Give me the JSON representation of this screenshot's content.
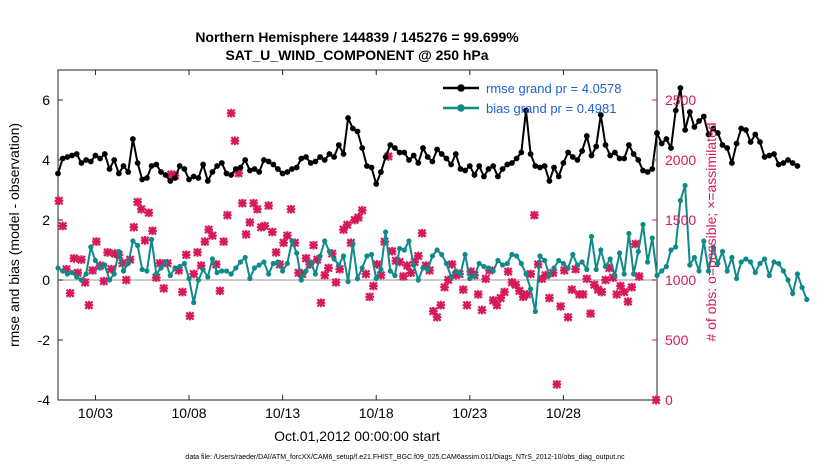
{
  "chart_data": {
    "type": "line",
    "title": "Northern Hemisphere 144839 / 145276 = 99.699%",
    "subtitle": "SAT_U_WIND_COMPONENT @ 250 hPa",
    "xlabel": "Oct.01,2012 00:00:00 start",
    "ylabel": "rmse and bias (model - observation)",
    "y2label": "# of obs: o=possible; ×=assimilated",
    "footnote": "data file: /Users/raeder/DAI/ATM_forcXX/CAM6_setup/f.e21.FHIST_BGC.f09_025.CAM6assim.011/Diags_NTrS_2012-10/obs_diag_output.nc",
    "x_tick_labels": [
      "10/03",
      "10/08",
      "10/13",
      "10/18",
      "10/23",
      "10/28"
    ],
    "x_tick_days": [
      3,
      8,
      13,
      18,
      23,
      28
    ],
    "xlim_days": [
      1.0,
      33.0
    ],
    "ylim": [
      -4,
      7
    ],
    "y_ticks": [
      -4,
      -2,
      0,
      2,
      4,
      6
    ],
    "y2lim": [
      0,
      2750
    ],
    "y2_ticks": [
      0,
      500,
      1000,
      1500,
      2000,
      2500
    ],
    "colors": {
      "rmse": "#000000",
      "bias": "#0f8a8a",
      "obs": "#d6195a",
      "zero_line": "#bbbbbb",
      "legend_text": "#1f5fd6"
    },
    "legend_placement": "top-right",
    "series": [
      {
        "name": "rmse grand pr = 4.0578",
        "key": "rmse",
        "x_start_day": 1.0,
        "dx_days": 0.25,
        "values": [
          3.55,
          4.05,
          4.1,
          4.15,
          4.2,
          3.9,
          4.0,
          3.95,
          4.15,
          4.05,
          4.2,
          3.7,
          4.0,
          3.55,
          3.8,
          3.6,
          4.7,
          3.9,
          3.35,
          3.4,
          3.8,
          3.85,
          3.6,
          3.5,
          3.3,
          3.4,
          3.8,
          3.7,
          3.35,
          3.45,
          3.4,
          3.85,
          3.3,
          3.6,
          3.8,
          3.9,
          3.55,
          3.5,
          3.7,
          3.75,
          4.0,
          3.65,
          3.7,
          3.6,
          4.0,
          3.95,
          3.85,
          3.7,
          3.55,
          3.6,
          3.7,
          3.75,
          4.05,
          4.1,
          3.9,
          3.95,
          4.1,
          4.0,
          4.2,
          4.1,
          4.5,
          4.2,
          5.4,
          5.05,
          4.95,
          4.4,
          3.8,
          3.75,
          3.2,
          3.6,
          4.1,
          4.5,
          4.4,
          4.25,
          4.25,
          4.0,
          4.15,
          3.9,
          4.4,
          4.1,
          3.95,
          4.35,
          4.2,
          4.05,
          3.85,
          4.2,
          3.7,
          3.65,
          3.8,
          3.5,
          3.8,
          3.45,
          3.7,
          3.8,
          3.45,
          3.7,
          3.85,
          3.9,
          4.05,
          4.25,
          5.65,
          4.2,
          3.8,
          3.75,
          3.8,
          3.3,
          3.75,
          3.45,
          3.9,
          4.25,
          4.1,
          4.0,
          4.3,
          4.8,
          4.15,
          4.45,
          5.5,
          4.5,
          4.15,
          4.25,
          4.05,
          4.05,
          4.5,
          4.2,
          4.0,
          3.65,
          3.6,
          3.7,
          4.9,
          4.55,
          4.7,
          4.4,
          5.65,
          6.4,
          5.0,
          5.6,
          5.1,
          5.3,
          5.45,
          4.85,
          5.05,
          4.9,
          4.5,
          4.4,
          3.9,
          4.55,
          5.05,
          5.0,
          4.6,
          4.85,
          4.6,
          4.1,
          4.15,
          4.2,
          3.85,
          3.9,
          4.0,
          3.9,
          3.8
        ]
      },
      {
        "name": "bias grand pr = 0.4981",
        "key": "bias",
        "x_start_day": 1.0,
        "dx_days": 0.25,
        "values": [
          0.4,
          0.3,
          0.2,
          0.25,
          0.1,
          0.0,
          0.2,
          1.1,
          0.65,
          0.4,
          0.5,
          0.0,
          0.2,
          0.95,
          0.3,
          0.55,
          1.3,
          1.15,
          0.35,
          0.3,
          1.35,
          0.2,
          0.4,
          0.6,
          0.15,
          0.4,
          0.45,
          0.55,
          0.05,
          -0.75,
          0.0,
          0.35,
          0.1,
          0.7,
          0.25,
          0.3,
          0.3,
          0.2,
          0.4,
          0.6,
          0.75,
          0.05,
          0.4,
          0.5,
          0.6,
          0.2,
          0.55,
          0.6,
          0.3,
          0.55,
          1.3,
          0.9,
          0.0,
          0.3,
          0.6,
          0.2,
          0.8,
          1.3,
          0.95,
          0.7,
          0.5,
          0.8,
          -0.05,
          1.2,
          0.05,
          0.4,
          0.8,
          0.85,
          0.05,
          0.35,
          1.6,
          0.3,
          0.15,
          1.05,
          1.0,
          1.3,
          0.5,
          0.0,
          0.4,
          0.35,
          0.8,
          1.0,
          0.85,
          0.55,
          0.1,
          0.3,
          0.2,
          0.85,
          0.05,
          0.15,
          0.55,
          0.45,
          0.4,
          0.3,
          0.65,
          0.5,
          0.55,
          0.85,
          0.8,
          0.55,
          0.2,
          -0.3,
          -1.05,
          0.8,
          0.65,
          0.15,
          0.4,
          0.65,
          0.55,
          0.4,
          0.85,
          0.5,
          0.6,
          0.35,
          1.45,
          0.35,
          1.0,
          0.45,
          0.7,
          0.15,
          0.9,
          0.2,
          1.55,
          0.2,
          0.95,
          1.85,
          0.6,
          1.4,
          0.15,
          0.3,
          0.45,
          1.0,
          1.1,
          2.65,
          3.15,
          0.5,
          0.75,
          0.3,
          1.3,
          0.3,
          1.1,
          0.55,
          0.95,
          0.3,
          0.75,
          0.05,
          0.6,
          0.7,
          0.6,
          0.25,
          0.55,
          0.7,
          0.15,
          0.6,
          0.55,
          0.3,
          0.0,
          -0.45,
          0.2,
          -0.25,
          -0.65
        ]
      }
    ],
    "obs_points": [
      [
        1.05,
        1660
      ],
      [
        1.25,
        1450
      ],
      [
        1.45,
        1090
      ],
      [
        1.65,
        890
      ],
      [
        1.85,
        1180
      ],
      [
        2.05,
        1060
      ],
      [
        2.25,
        1170
      ],
      [
        2.45,
        980
      ],
      [
        2.65,
        790
      ],
      [
        2.85,
        1080
      ],
      [
        3.05,
        1320
      ],
      [
        3.25,
        1120
      ],
      [
        3.45,
        990
      ],
      [
        3.65,
        1230
      ],
      [
        3.85,
        1090
      ],
      [
        4.05,
        1220
      ],
      [
        4.25,
        1210
      ],
      [
        4.45,
        1140
      ],
      [
        4.65,
        1000
      ],
      [
        4.85,
        1170
      ],
      [
        5.05,
        1440
      ],
      [
        5.25,
        1650
      ],
      [
        5.45,
        1590
      ],
      [
        5.65,
        1330
      ],
      [
        5.85,
        1560
      ],
      [
        6.05,
        1410
      ],
      [
        6.25,
        1020
      ],
      [
        6.45,
        1140
      ],
      [
        6.65,
        930
      ],
      [
        6.85,
        1140
      ],
      [
        7.05,
        1880
      ],
      [
        7.25,
        1870
      ],
      [
        7.45,
        1080
      ],
      [
        7.65,
        900
      ],
      [
        7.85,
        1210
      ],
      [
        8.05,
        700
      ],
      [
        8.25,
        1050
      ],
      [
        8.45,
        1230
      ],
      [
        8.65,
        1120
      ],
      [
        8.85,
        1320
      ],
      [
        9.05,
        1420
      ],
      [
        9.25,
        1370
      ],
      [
        9.45,
        1130
      ],
      [
        9.65,
        910
      ],
      [
        9.85,
        1320
      ],
      [
        10.05,
        1540
      ],
      [
        10.25,
        2390
      ],
      [
        10.45,
        2160
      ],
      [
        10.65,
        1890
      ],
      [
        10.85,
        1640
      ],
      [
        11.05,
        1380
      ],
      [
        11.25,
        1480
      ],
      [
        11.45,
        1640
      ],
      [
        11.65,
        1590
      ],
      [
        11.85,
        1440
      ],
      [
        12.05,
        1450
      ],
      [
        12.25,
        1620
      ],
      [
        12.45,
        1400
      ],
      [
        12.65,
        1230
      ],
      [
        12.85,
        1130
      ],
      [
        13.05,
        1310
      ],
      [
        13.25,
        1370
      ],
      [
        13.45,
        1590
      ],
      [
        13.65,
        1310
      ],
      [
        13.85,
        1060
      ],
      [
        14.05,
        1050
      ],
      [
        14.25,
        1180
      ],
      [
        14.45,
        1130
      ],
      [
        14.65,
        1290
      ],
      [
        14.85,
        1170
      ],
      [
        15.05,
        810
      ],
      [
        15.25,
        1040
      ],
      [
        15.45,
        1100
      ],
      [
        15.65,
        1220
      ],
      [
        15.85,
        980
      ],
      [
        16.05,
        1090
      ],
      [
        16.25,
        1420
      ],
      [
        16.45,
        1460
      ],
      [
        16.65,
        1310
      ],
      [
        16.85,
        1500
      ],
      [
        17.05,
        1520
      ],
      [
        17.25,
        1580
      ],
      [
        17.45,
        1050
      ],
      [
        17.65,
        860
      ],
      [
        17.85,
        950
      ],
      [
        18.05,
        1130
      ],
      [
        18.25,
        1040
      ],
      [
        18.45,
        1320
      ],
      [
        18.65,
        2030
      ],
      [
        18.85,
        1240
      ],
      [
        19.05,
        1160
      ],
      [
        19.25,
        1150
      ],
      [
        19.45,
        1030
      ],
      [
        19.65,
        1120
      ],
      [
        19.85,
        1060
      ],
      [
        20.05,
        1150
      ],
      [
        20.25,
        1200
      ],
      [
        20.45,
        1390
      ],
      [
        20.65,
        1120
      ],
      [
        20.85,
        1080
      ],
      [
        21.05,
        740
      ],
      [
        21.25,
        690
      ],
      [
        21.45,
        790
      ],
      [
        21.65,
        940
      ],
      [
        21.85,
        1000
      ],
      [
        22.05,
        1130
      ],
      [
        22.25,
        1040
      ],
      [
        22.45,
        1050
      ],
      [
        22.65,
        920
      ],
      [
        22.85,
        790
      ],
      [
        23.05,
        1070
      ],
      [
        23.25,
        1040
      ],
      [
        23.45,
        880
      ],
      [
        23.65,
        750
      ],
      [
        23.85,
        1010
      ],
      [
        24.05,
        1080
      ],
      [
        24.25,
        830
      ],
      [
        24.45,
        790
      ],
      [
        24.65,
        850
      ],
      [
        24.85,
        900
      ],
      [
        25.05,
        1070
      ],
      [
        25.25,
        980
      ],
      [
        25.45,
        960
      ],
      [
        25.65,
        910
      ],
      [
        25.85,
        860
      ],
      [
        26.05,
        880
      ],
      [
        26.25,
        1050
      ],
      [
        26.45,
        1540
      ],
      [
        26.65,
        1130
      ],
      [
        26.85,
        1010
      ],
      [
        27.05,
        1040
      ],
      [
        27.25,
        850
      ],
      [
        27.45,
        1060
      ],
      [
        27.65,
        130
      ],
      [
        27.85,
        780
      ],
      [
        28.05,
        1080
      ],
      [
        28.25,
        690
      ],
      [
        28.45,
        920
      ],
      [
        28.65,
        1090
      ],
      [
        28.85,
        880
      ],
      [
        29.05,
        880
      ],
      [
        29.25,
        1010
      ],
      [
        29.45,
        720
      ],
      [
        29.65,
        960
      ],
      [
        29.85,
        920
      ],
      [
        30.05,
        900
      ],
      [
        30.25,
        1000
      ],
      [
        30.45,
        1100
      ],
      [
        30.65,
        1020
      ],
      [
        30.85,
        880
      ],
      [
        31.05,
        950
      ],
      [
        31.25,
        900
      ],
      [
        31.45,
        820
      ],
      [
        31.65,
        940
      ],
      [
        31.85,
        1300
      ],
      [
        32.05,
        1030
      ],
      [
        32.95,
        0
      ]
    ]
  }
}
